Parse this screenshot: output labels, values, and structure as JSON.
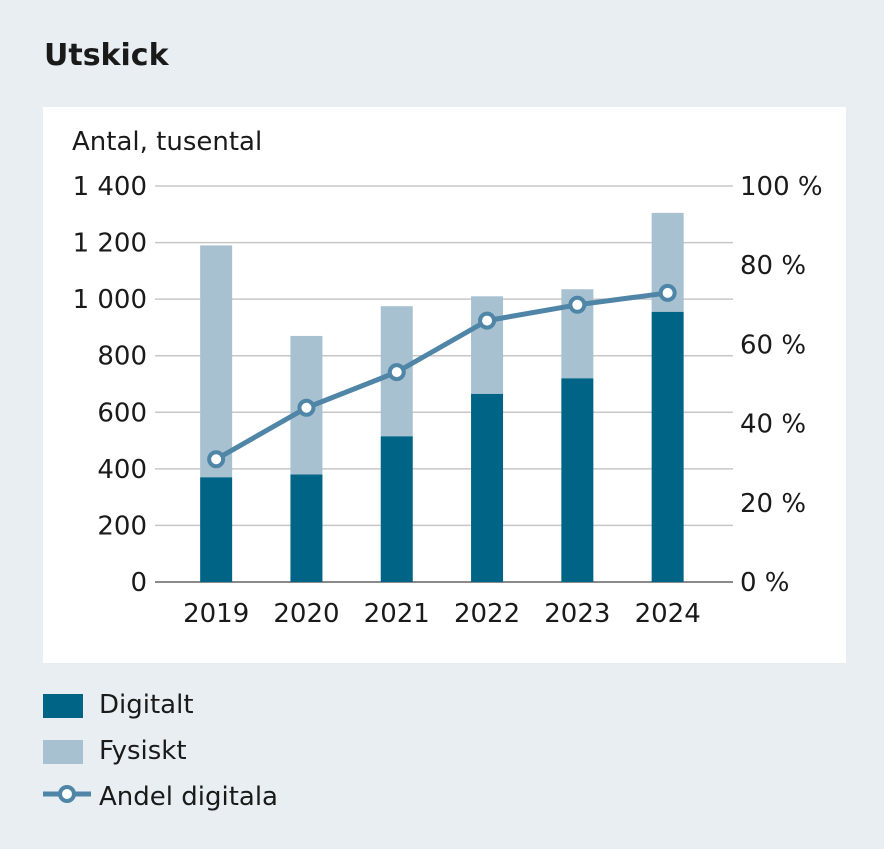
{
  "title": "Utskick",
  "colors": {
    "digital": "#006486",
    "physical": "#a7c1d0",
    "line": "#4f85a6",
    "grid": "#c7c7c7",
    "background": "#e8eef1"
  },
  "legend": {
    "digital": "Digitalt",
    "physical": "Fysiskt",
    "share": "Andel digitala"
  },
  "chart_data": {
    "type": "bar",
    "stacked": true,
    "ylabel": "Antal, tusental",
    "categories": [
      "2019",
      "2020",
      "2021",
      "2022",
      "2023",
      "2024"
    ],
    "series": [
      {
        "name": "Digitalt",
        "axis": "left",
        "type": "bar",
        "values": [
          370,
          380,
          515,
          665,
          720,
          955
        ]
      },
      {
        "name": "Fysiskt",
        "axis": "left",
        "type": "bar",
        "values": [
          820,
          490,
          460,
          345,
          315,
          350
        ]
      },
      {
        "name": "Andel digitala",
        "axis": "right",
        "type": "line",
        "values": [
          31,
          44,
          53,
          66,
          70,
          73
        ]
      }
    ],
    "ylim": [
      0,
      1400
    ],
    "yticks": [
      0,
      200,
      400,
      600,
      800,
      1000,
      1200,
      1400
    ],
    "ytick_labels": [
      "0",
      "200",
      "400",
      "600",
      "800",
      "1 000",
      "1 200",
      "1 400"
    ],
    "y2lim": [
      0,
      100
    ],
    "y2ticks": [
      0,
      20,
      40,
      60,
      80,
      100
    ],
    "y2tick_labels": [
      "0 %",
      "20 %",
      "40 %",
      "60 %",
      "80 %",
      "100 %"
    ],
    "grid": true,
    "legend_position": "bottom"
  }
}
